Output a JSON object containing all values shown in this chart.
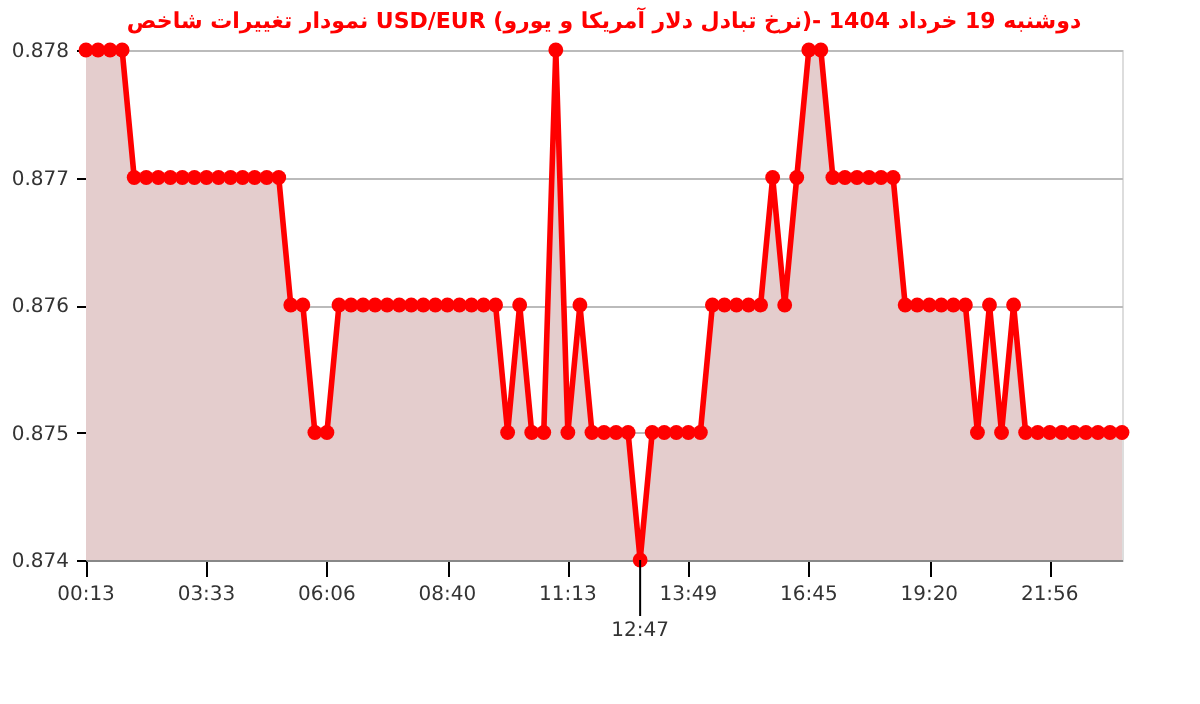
{
  "chart_data": {
    "type": "area",
    "title": "نمودار تغییرات شاخص USD/EUR (نرخ تبادل دلار آمریکا و یورو)- دوشنبه  19 خرداد 1404",
    "categories": [
      "00:13",
      null,
      null,
      null,
      null,
      null,
      null,
      null,
      null,
      null,
      "03:33",
      null,
      null,
      null,
      null,
      null,
      null,
      null,
      null,
      null,
      "06:06",
      null,
      null,
      null,
      null,
      null,
      null,
      null,
      null,
      null,
      "08:40",
      null,
      null,
      null,
      null,
      null,
      null,
      null,
      null,
      null,
      "11:13",
      null,
      null,
      null,
      null,
      null,
      null,
      null,
      null,
      null,
      "13:49",
      null,
      null,
      null,
      null,
      null,
      null,
      null,
      null,
      null,
      "16:45",
      null,
      null,
      null,
      null,
      null,
      null,
      null,
      null,
      null,
      "19:20",
      null,
      null,
      null,
      null,
      null,
      null,
      null,
      null,
      null,
      "21:56",
      null,
      null,
      null,
      null,
      null,
      null
    ],
    "series": [
      {
        "color": "#ff0000",
        "values": [
          0.878,
          0.878,
          0.878,
          0.878,
          0.877,
          0.877,
          0.877,
          0.877,
          0.877,
          0.877,
          0.877,
          0.877,
          0.877,
          0.877,
          0.877,
          0.877,
          0.877,
          0.876,
          0.876,
          0.875,
          0.875,
          0.876,
          0.876,
          0.876,
          0.876,
          0.876,
          0.876,
          0.876,
          0.876,
          0.876,
          0.876,
          0.876,
          0.876,
          0.876,
          0.876,
          0.875,
          0.876,
          0.875,
          0.875,
          0.878,
          0.875,
          0.876,
          0.875,
          0.875,
          0.875,
          0.875,
          0.874,
          0.875,
          0.875,
          0.875,
          0.875,
          0.875,
          0.876,
          0.876,
          0.876,
          0.876,
          0.876,
          0.877,
          0.876,
          0.877,
          0.878,
          0.878,
          0.877,
          0.877,
          0.877,
          0.877,
          0.877,
          0.877,
          0.876,
          0.876,
          0.876,
          0.876,
          0.876,
          0.876,
          0.875,
          0.876,
          0.875,
          0.876,
          0.875,
          0.875,
          0.875,
          0.875,
          0.875,
          0.875,
          0.875,
          0.875,
          0.875
        ]
      }
    ],
    "ylim": [
      0.874,
      0.878
    ],
    "yticks": [
      0.874,
      0.875,
      0.876,
      0.877,
      0.878
    ],
    "grid": "y",
    "marker": "circle",
    "annotations": [
      "12:47"
    ]
  }
}
